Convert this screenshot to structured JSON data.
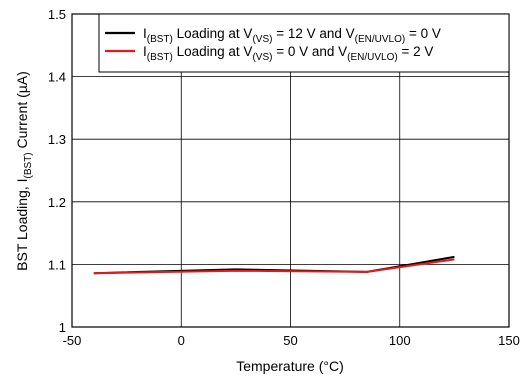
{
  "chart_data": {
    "type": "line",
    "xlabel": "Temperature (°C)",
    "ylabel": {
      "p1": "BST Loading, I",
      "sub": "(BST)",
      "p2": " Current (µA)"
    },
    "xlim": [
      -50,
      150
    ],
    "ylim": [
      1,
      1.5
    ],
    "xticks": [
      -50,
      0,
      50,
      100,
      150
    ],
    "xtick_labels": [
      "-50",
      "0",
      "50",
      "100",
      "150"
    ],
    "yticks": [
      1,
      1.1,
      1.2,
      1.3,
      1.4,
      1.5
    ],
    "ytick_labels": [
      "1",
      "1.1",
      "1.2",
      "1.3",
      "1.4",
      "1.5"
    ],
    "grid": true,
    "legend_position": "top-right",
    "series": [
      {
        "color": "#000000",
        "x": [
          -40,
          25,
          85,
          125
        ],
        "y": [
          1.086,
          1.092,
          1.088,
          1.112
        ],
        "label_parts": [
          {
            "t": "I",
            "sub": false
          },
          {
            "t": "(BST)",
            "sub": true
          },
          {
            "t": " Loading at V",
            "sub": false
          },
          {
            "t": "(VS)",
            "sub": true
          },
          {
            "t": " = 12 V and V",
            "sub": false
          },
          {
            "t": "(EN/UVLO)",
            "sub": true
          },
          {
            "t": " = 0 V",
            "sub": false
          }
        ]
      },
      {
        "color": "#e31a1c",
        "x": [
          -40,
          25,
          85,
          125
        ],
        "y": [
          1.086,
          1.09,
          1.088,
          1.108
        ],
        "label_parts": [
          {
            "t": "I",
            "sub": false
          },
          {
            "t": "(BST)",
            "sub": true
          },
          {
            "t": " Loading at V",
            "sub": false
          },
          {
            "t": "(VS)",
            "sub": true
          },
          {
            "t": " = 0 V and V",
            "sub": false
          },
          {
            "t": "(EN/UVLO)",
            "sub": true
          },
          {
            "t": " = 2 V",
            "sub": false
          }
        ]
      }
    ]
  }
}
